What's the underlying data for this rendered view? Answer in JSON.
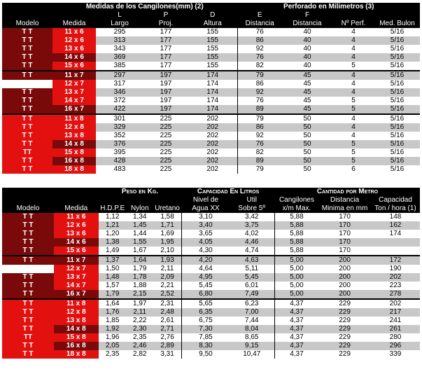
{
  "table1": {
    "title_left": "Medidas de los Cangilones(mm) (2)",
    "title_right": "Perforado en Milimetros (3)",
    "letters": [
      "L",
      "P",
      "D",
      "E",
      "F"
    ],
    "headers": [
      "Modelo",
      "Medida",
      "Largo",
      "Proj.",
      "Altura",
      "Distancia",
      "Distancia",
      "Nº Perf.",
      "Med. Bulon"
    ],
    "rows": [
      [
        "T T",
        "11 x 6",
        "295",
        "177",
        "155",
        "76",
        "40",
        "4",
        "5/16"
      ],
      [
        "T T",
        "12 x 6",
        "313",
        "177",
        "155",
        "86",
        "40",
        "4",
        "5/16"
      ],
      [
        "T T",
        "13 x 6",
        "343",
        "177",
        "155",
        "92",
        "40",
        "4",
        "5/16"
      ],
      [
        "T T",
        "14 x 6",
        "369",
        "177",
        "155",
        "76",
        "40",
        "4",
        "5/16"
      ],
      [
        "T T",
        "15 x 6",
        "385",
        "177",
        "155",
        "82",
        "40",
        "5",
        "5/16"
      ],
      [
        "T T",
        "11 x 7",
        "297",
        "197",
        "174",
        "79",
        "45",
        "4",
        "5/16"
      ],
      [
        "",
        "12 x 7",
        "317",
        "197",
        "174",
        "86",
        "45",
        "4",
        "5/16"
      ],
      [
        "T T",
        "13 x 7",
        "346",
        "197",
        "174",
        "92",
        "45",
        "4",
        "5/16"
      ],
      [
        "T T",
        "14 x 7",
        "372",
        "197",
        "174",
        "76",
        "45",
        "5",
        "5/16"
      ],
      [
        "T T",
        "16 x 7",
        "422",
        "197",
        "174",
        "89",
        "45",
        "5",
        "5/16"
      ],
      [
        "T T",
        "11 x 8",
        "301",
        "225",
        "202",
        "79",
        "50",
        "4",
        "5/16"
      ],
      [
        "T T",
        "12 x 8",
        "329",
        "225",
        "202",
        "86",
        "50",
        "4",
        "5/16"
      ],
      [
        "T T",
        "13 x 8",
        "352",
        "225",
        "202",
        "92",
        "50",
        "4",
        "5/16"
      ],
      [
        "T T",
        "14 x 8",
        "376",
        "225",
        "202",
        "76",
        "50",
        "5",
        "5/16"
      ],
      [
        "TT",
        "15 x 8",
        "395",
        "225",
        "202",
        "82",
        "50",
        "5",
        "5/16"
      ],
      [
        "T T",
        "16 x 8",
        "428",
        "225",
        "202",
        "89",
        "50",
        "5",
        "5/16"
      ],
      [
        "T T",
        "18 x 8",
        "483",
        "225",
        "202",
        "79",
        "50",
        "6",
        "5/16"
      ]
    ]
  },
  "table2": {
    "group_titles": [
      "Peso en Kg.",
      "Capacidad En Litros",
      "Cantidad por Metro"
    ],
    "sub_headers": [
      "Nivel de",
      "Util",
      "Cangilones",
      "Distancia",
      "Capacidad"
    ],
    "headers": [
      "Modelo",
      "Medida",
      "H.D.P.E",
      "Nylon",
      "Uretano",
      "Agua XX",
      "Sobre 5º",
      "x/m Max.",
      "Minima en mm",
      "Ton / hora (1)"
    ],
    "rows": [
      [
        "T T",
        "11 x 6",
        "1,12",
        "1,34",
        "1,58",
        "3,10",
        "3,42",
        "5,88",
        "170",
        "148"
      ],
      [
        "T T",
        "12 x 6",
        "1,21",
        "1,45",
        "1,71",
        "3,40",
        "3,75",
        "5,88",
        "170",
        "162"
      ],
      [
        "T T",
        "13 x 6",
        "1,20",
        "1,44",
        "1,69",
        "3,65",
        "4,02",
        "5,88",
        "170",
        "174"
      ],
      [
        "T T",
        "14 x 6",
        "1,38",
        "1,55",
        "1,95",
        "4,05",
        "4,46",
        "5,88",
        "170",
        ""
      ],
      [
        "T T",
        "15 x 6",
        "1,49",
        "1,67",
        "2,10",
        "4,30",
        "4,74",
        "5,88",
        "170",
        ""
      ],
      [
        "T T",
        "11 x 7",
        "1,37",
        "1,64",
        "1,93",
        "4,20",
        "4,63",
        "5,00",
        "200",
        "172"
      ],
      [
        "",
        "12 x 7",
        "1,50",
        "1,79",
        "2,11",
        "4,64",
        "5,11",
        "5,00",
        "200",
        "190"
      ],
      [
        "T T",
        "13 x 7",
        "1,48",
        "1,78",
        "2,09",
        "4,95",
        "5,45",
        "5,00",
        "200",
        "202"
      ],
      [
        "T T",
        "14 x 7",
        "1,57",
        "1,88",
        "2,21",
        "5,45",
        "6,01",
        "5,00",
        "200",
        "223"
      ],
      [
        "T T",
        "16 x 7",
        "1,79",
        "2,15",
        "2,52",
        "6,80",
        "7,49",
        "5,00",
        "200",
        "278"
      ],
      [
        "T T",
        "11 x 8",
        "1,64",
        "1,97",
        "2,31",
        "5,65",
        "6,23",
        "4,37",
        "229",
        "202"
      ],
      [
        "T T",
        "12 x 8",
        "1,76",
        "2,11",
        "2,48",
        "6,35",
        "7,00",
        "4,37",
        "229",
        "217"
      ],
      [
        "T T",
        "13 x 8",
        "1,85",
        "2,22",
        "2,61",
        "6,75",
        "7,44",
        "4,37",
        "229",
        "241"
      ],
      [
        "T T",
        "14 x 8",
        "1,92",
        "2,30",
        "2,71",
        "7,30",
        "8,04",
        "4,37",
        "229",
        "261"
      ],
      [
        "TT",
        "15 x 8",
        "1,96",
        "2,35",
        "2,76",
        "7,85",
        "8,65",
        "4,37",
        "229",
        "280"
      ],
      [
        "T T",
        "16 x 8",
        "2,05",
        "2,46",
        "2,89",
        "8,30",
        "9,15",
        "4,37",
        "229",
        "296"
      ],
      [
        "T T",
        "18 x 8",
        "2,35",
        "2,82",
        "3,31",
        "9,50",
        "10,47",
        "4,37",
        "229",
        "339"
      ]
    ]
  },
  "colors": {
    "dark_red": "#7a0a0a",
    "bright_red": "#e31010",
    "gray_row": "#c8c8c8",
    "header_bg": "#000000"
  }
}
